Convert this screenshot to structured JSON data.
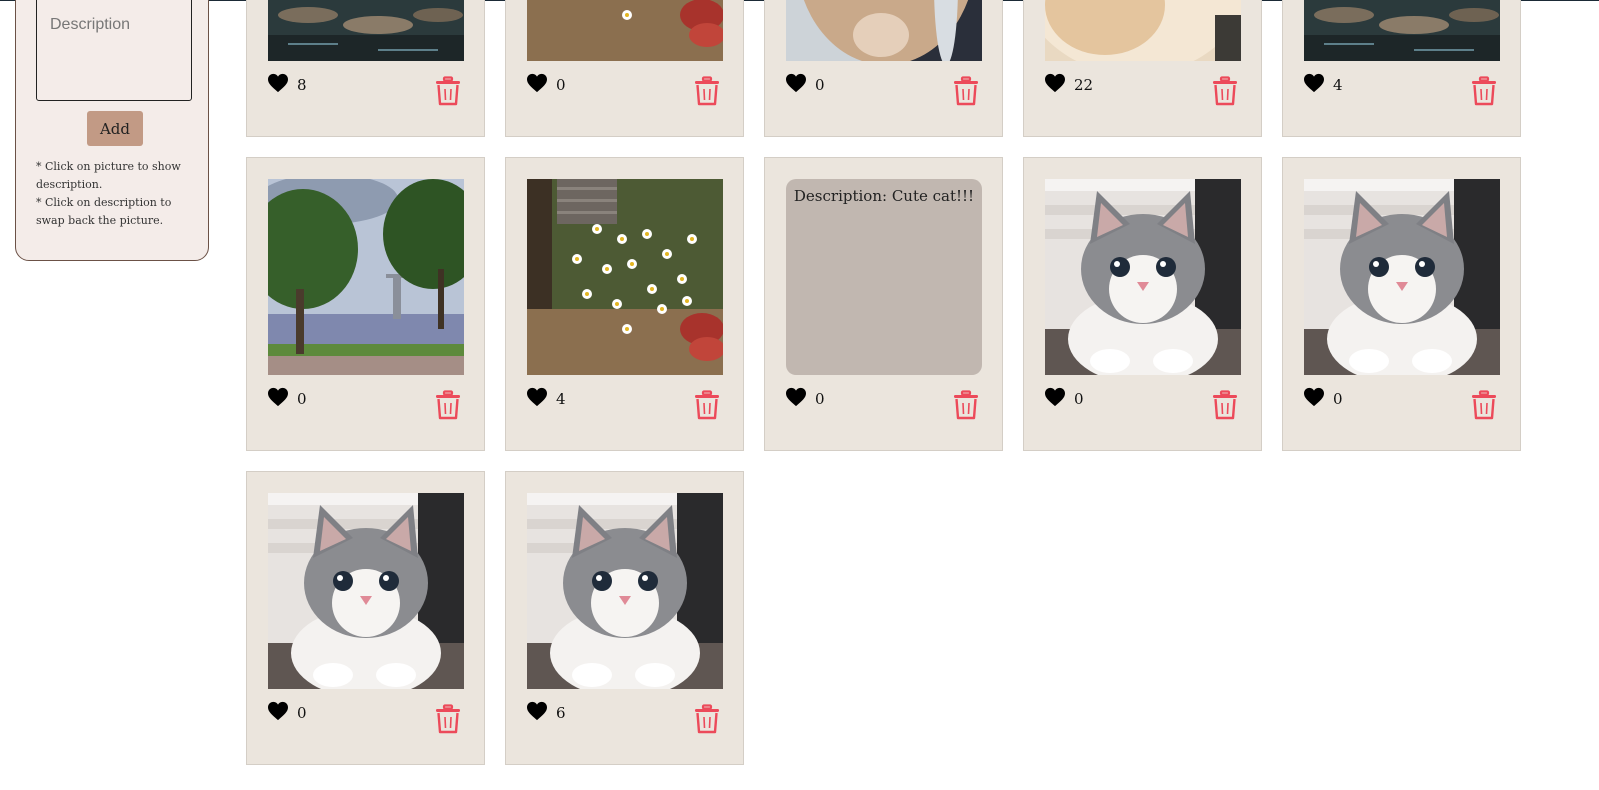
{
  "colors": {
    "card_bg": "#ebe5dd",
    "sidebar_bg": "#f4ece9",
    "add_button": "#c29a85",
    "trash": "#ec4a5a",
    "heart": "#000000",
    "description_bg": "#c1b7b0"
  },
  "form": {
    "description_placeholder": "Description",
    "add_label": "Add",
    "hints": [
      "* Click on picture to show description.",
      "* Click on description to swap back the picture."
    ]
  },
  "cards": [
    {
      "image": "river",
      "likes": "8"
    },
    {
      "image": "daisies",
      "likes": "0"
    },
    {
      "image": "cat-paw",
      "likes": "0"
    },
    {
      "image": "fluffy-fur",
      "likes": "22"
    },
    {
      "image": "river",
      "likes": "4"
    },
    {
      "image": "lake-tree",
      "likes": "0"
    },
    {
      "image": "daisies",
      "likes": "4"
    },
    {
      "image": "kitten",
      "likes": "0",
      "description": "Description: Cute cat!!!",
      "showing_description": true
    },
    {
      "image": "kitten",
      "likes": "0"
    },
    {
      "image": "kitten",
      "likes": "0"
    },
    {
      "image": "kitten",
      "likes": "0"
    },
    {
      "image": "kitten",
      "likes": "6"
    }
  ],
  "icons": {
    "like": "heart-icon",
    "delete": "trash-icon"
  }
}
